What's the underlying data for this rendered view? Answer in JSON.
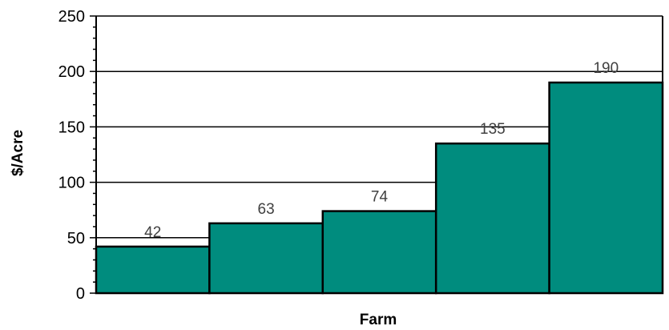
{
  "chart_data": {
    "type": "bar",
    "title": "",
    "xlabel": "Farm",
    "ylabel": "$/Acre",
    "categories": [
      "",
      "",
      "",
      "",
      ""
    ],
    "values": [
      42,
      63,
      74,
      135,
      190
    ],
    "data_labels": [
      "42",
      "63",
      "74",
      "135",
      "190"
    ],
    "ylim": [
      0,
      250
    ],
    "yticks": [
      0,
      50,
      100,
      150,
      200,
      250
    ],
    "ytick_labels": [
      "0",
      "50",
      "100",
      "150",
      "200",
      "250"
    ],
    "grid": true,
    "bar_color": "#008C7E",
    "bar_edge_color": "#000000",
    "legend": "none"
  }
}
